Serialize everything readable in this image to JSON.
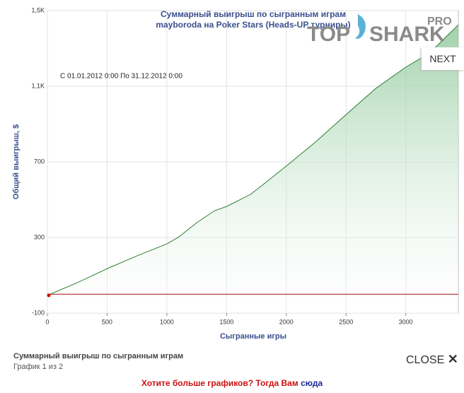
{
  "chart_data": {
    "type": "area",
    "title": "Суммарный выигрыш по сыгранным играм",
    "subtitle": "mayboroda на Poker Stars (Heads-UP турниры)",
    "annotation": "С 01.01.2012 0:00 По 31.12.2012 0:00",
    "x_label": "Сыгранные игры",
    "y_label": "Общий выигрыш, $",
    "x": [
      0,
      250,
      500,
      750,
      1000,
      1100,
      1250,
      1400,
      1500,
      1700,
      1800,
      2000,
      2250,
      2500,
      2750,
      3000,
      3200,
      3440
    ],
    "values": [
      -6,
      61,
      135,
      203,
      266,
      303,
      378,
      442,
      464,
      528,
      577,
      678,
      808,
      950,
      1089,
      1201,
      1276,
      1425
    ],
    "color": "#2e7d32",
    "fill": "#9fd0a8",
    "marker_color": "#dd0000",
    "reference_line": {
      "value": 0,
      "color": "#a01010"
    },
    "xlim": [
      0,
      3440
    ],
    "xticks": [
      0,
      500,
      1000,
      1500,
      2000,
      2500,
      3000
    ],
    "ylim": [
      -100,
      1500
    ],
    "yticks": [
      -100,
      300,
      700,
      {
        "value": 1100,
        "label": "1,1K"
      },
      {
        "value": 1500,
        "label": "1,5K"
      }
    ],
    "grid": true
  },
  "logo": {
    "top": "TOP",
    "shark": "SHARK",
    "pro": "PRO"
  },
  "next_button": "NEXT",
  "caption": "Суммарный выигрыш по сыгранным играм",
  "counter": "График 1 из 2",
  "close_button": "CLOSE",
  "promo": {
    "text": "Хотите больше графиков? Тогда Вам",
    "link": "сюда"
  }
}
